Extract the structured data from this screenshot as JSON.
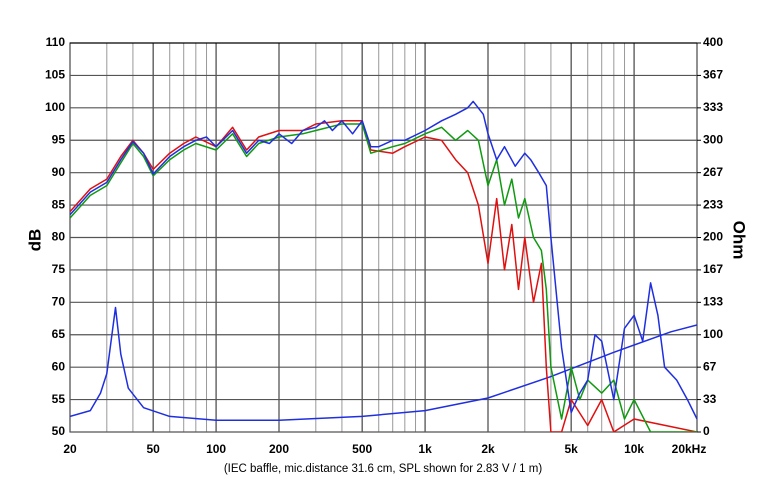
{
  "chart_data": {
    "type": "line",
    "x_label": "(IEC baffle, mic.distance 31.6 cm, SPL shown for 2.83 V / 1 m)",
    "y_label": "dB",
    "y2_label": "Ohm",
    "log_x": true,
    "grid": true,
    "xlim": [
      20,
      20000
    ],
    "xticks": [
      20,
      50,
      100,
      200,
      500,
      {
        "value": 1000,
        "label": "1k"
      },
      {
        "value": 2000,
        "label": "2k"
      },
      {
        "value": 5000,
        "label": "5k"
      },
      {
        "value": 10000,
        "label": "10k"
      },
      {
        "value": 20000,
        "label": "20kHz"
      }
    ],
    "ylim": [
      50,
      110
    ],
    "yticks": [
      50,
      55,
      60,
      65,
      70,
      75,
      80,
      85,
      90,
      95,
      100,
      105,
      110
    ],
    "y2lim": [
      0,
      400
    ],
    "y2ticks": [
      0,
      {
        "value": 33.33,
        "label": "33"
      },
      {
        "value": 66.67,
        "label": "67"
      },
      100,
      {
        "value": 133.33,
        "label": "133"
      },
      {
        "value": 166.67,
        "label": "167"
      },
      200,
      {
        "value": 233.33,
        "label": "233"
      },
      {
        "value": 266.67,
        "label": "267"
      },
      300,
      {
        "value": 333.33,
        "label": "333"
      },
      {
        "value": 366.67,
        "label": "367"
      },
      400
    ],
    "series": [
      {
        "color": "#1f2fe0",
        "x": [
          20,
          25,
          30,
          35,
          40,
          45,
          50,
          60,
          70,
          80,
          90,
          100,
          120,
          140,
          160,
          180,
          200,
          230,
          260,
          300,
          330,
          360,
          400,
          450,
          500,
          550,
          600,
          700,
          800,
          1000,
          1200,
          1400,
          1600,
          1700,
          1900,
          2000,
          2200,
          2400,
          2700,
          3000,
          3200,
          3500,
          3800,
          4000,
          4500,
          5000,
          5500,
          6000,
          6500,
          7000,
          8000,
          9000,
          10000,
          11000,
          12000,
          13000,
          14000,
          16000,
          18000,
          20000
        ],
        "values": [
          83.5,
          87,
          88.5,
          92,
          94.8,
          93,
          89.8,
          92.5,
          94,
          95,
          95.5,
          94,
          96.5,
          93,
          95,
          94.5,
          96,
          94.5,
          96.5,
          97,
          98,
          96.5,
          98,
          96,
          98,
          94,
          94,
          95,
          95,
          96.5,
          98,
          99,
          100,
          101,
          99,
          96,
          92,
          94,
          91,
          93,
          92,
          90,
          88,
          80,
          63,
          53,
          56,
          58,
          65,
          64,
          55,
          66,
          68,
          64,
          73,
          68,
          60,
          58,
          55,
          52
        ]
      },
      {
        "color": "#109a10",
        "x": [
          20,
          25,
          30,
          35,
          40,
          45,
          50,
          60,
          70,
          80,
          100,
          120,
          140,
          160,
          200,
          260,
          300,
          400,
          500,
          550,
          700,
          800,
          1000,
          1200,
          1400,
          1600,
          1800,
          2000,
          2200,
          2400,
          2600,
          2800,
          3000,
          3300,
          3600,
          3800,
          4000,
          4500,
          5000,
          5500,
          6000,
          7000,
          8000,
          9000,
          10000,
          12000,
          14000,
          20000
        ],
        "values": [
          83,
          86.5,
          88,
          91.5,
          94.5,
          92.5,
          89.5,
          92,
          93.5,
          94.5,
          93.5,
          96,
          92.5,
          94.5,
          95.5,
          96,
          96.5,
          97.5,
          97.5,
          93,
          94,
          94.5,
          96,
          97,
          95,
          96.5,
          95,
          88,
          92,
          85,
          89,
          83,
          86,
          80,
          78,
          72,
          60,
          52,
          60,
          55,
          58,
          56,
          58,
          52,
          55,
          50,
          50,
          50
        ]
      },
      {
        "color": "#e01010",
        "x": [
          20,
          25,
          30,
          35,
          40,
          45,
          50,
          60,
          70,
          80,
          100,
          120,
          140,
          160,
          200,
          260,
          300,
          400,
          500,
          550,
          700,
          800,
          1000,
          1200,
          1400,
          1600,
          1800,
          2000,
          2200,
          2400,
          2600,
          2800,
          3000,
          3300,
          3600,
          3800,
          4000,
          4500,
          5000,
          6000,
          7000,
          8000,
          10000,
          20000
        ],
        "values": [
          84,
          87.5,
          89,
          92.5,
          95,
          93,
          90.5,
          93,
          94.5,
          95.5,
          94,
          97,
          93.5,
          95.5,
          96.5,
          96.5,
          97.5,
          98,
          98,
          93.5,
          93,
          94,
          95.5,
          95,
          92,
          90,
          85,
          76,
          86,
          75,
          82,
          72,
          80,
          70,
          76,
          60,
          50,
          50,
          55,
          51,
          55,
          50,
          52,
          50
        ]
      },
      {
        "color": "#1f2fe0",
        "axis": "y2",
        "x": [
          20,
          25,
          28,
          30,
          33,
          35,
          38,
          45,
          60,
          100,
          200,
          500,
          1000,
          2000,
          4000,
          8000,
          15000,
          20000
        ],
        "values": [
          16,
          22,
          40,
          60,
          128,
          80,
          45,
          25,
          16,
          12,
          12,
          16,
          22,
          35,
          57,
          82,
          103,
          110
        ]
      }
    ]
  }
}
